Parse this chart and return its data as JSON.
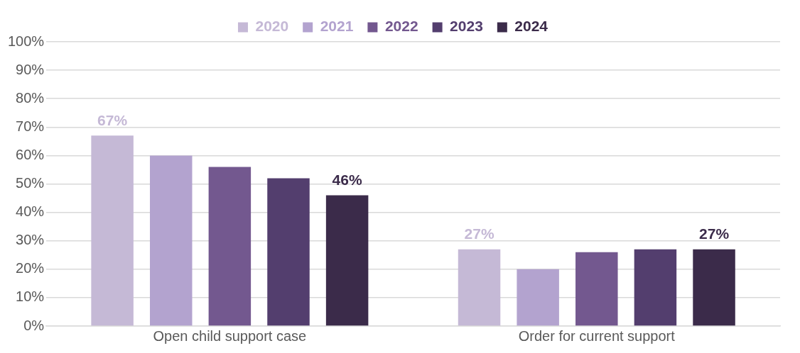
{
  "chart_data": {
    "type": "bar",
    "categories": [
      "Open child support case",
      "Order for current support"
    ],
    "series": [
      {
        "name": "2020",
        "color": "#c5b9d6",
        "values": [
          67,
          27
        ],
        "value_labels": [
          "67%",
          "27%"
        ]
      },
      {
        "name": "2021",
        "color": "#b3a3cf",
        "values": [
          60,
          20
        ],
        "value_labels": [
          null,
          null
        ]
      },
      {
        "name": "2022",
        "color": "#73588f",
        "values": [
          56,
          26
        ],
        "value_labels": [
          null,
          null
        ]
      },
      {
        "name": "2023",
        "color": "#533e6e",
        "values": [
          52,
          27
        ],
        "value_labels": [
          null,
          null
        ]
      },
      {
        "name": "2024",
        "color": "#3b2b4a",
        "values": [
          46,
          27
        ],
        "value_labels": [
          "46%",
          "27%"
        ]
      }
    ],
    "ylim": [
      0,
      100
    ],
    "yticks": [
      {
        "value": 0,
        "label": "0%"
      },
      {
        "value": 10,
        "label": "10%"
      },
      {
        "value": 20,
        "label": "20%"
      },
      {
        "value": 30,
        "label": "30%"
      },
      {
        "value": 40,
        "label": "40%"
      },
      {
        "value": 50,
        "label": "50%"
      },
      {
        "value": 60,
        "label": "60%"
      },
      {
        "value": 70,
        "label": "70%"
      },
      {
        "value": 80,
        "label": "80%"
      },
      {
        "value": 90,
        "label": "90%"
      },
      {
        "value": 100,
        "label": "100%"
      }
    ],
    "grid": "y",
    "legend": "top"
  }
}
